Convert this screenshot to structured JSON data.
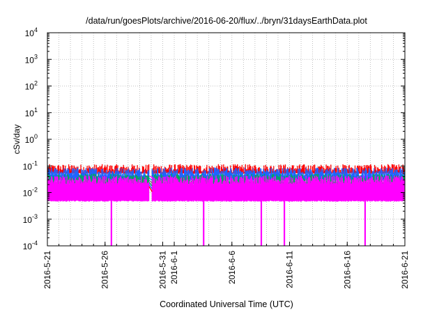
{
  "chart_data": {
    "type": "line",
    "title": "/data/run/goesPlots/archive/2016-06-20/flux/../bryn/31daysEarthData.plot",
    "xlabel": "Coordinated Universal Time (UTC)",
    "ylabel": "cSv/day",
    "yscale": "log",
    "ylim": [
      0.0001,
      10000
    ],
    "xlim": [
      "2016-05-21",
      "2016-06-21"
    ],
    "grid": true,
    "legend": "none",
    "x_ticks": [
      "2016-5-21",
      "2016-5-26",
      "2016-5-31",
      "2016-6-1",
      "2016-6-6",
      "2016-6-11",
      "2016-6-16",
      "2016-6-21"
    ],
    "x_tick_days": [
      0,
      5,
      10,
      11,
      16,
      21,
      26,
      31
    ],
    "y_ticks": [
      {
        "base": "10",
        "exp": "-4",
        "value": 0.0001
      },
      {
        "base": "10",
        "exp": "-3",
        "value": 0.001
      },
      {
        "base": "10",
        "exp": "-2",
        "value": 0.01
      },
      {
        "base": "10",
        "exp": "-1",
        "value": 0.1
      },
      {
        "base": "10",
        "exp": "0",
        "value": 1
      },
      {
        "base": "10",
        "exp": "1",
        "value": 10
      },
      {
        "base": "10",
        "exp": "2",
        "value": 100
      },
      {
        "base": "10",
        "exp": "3",
        "value": 1000
      },
      {
        "base": "10",
        "exp": "4",
        "value": 10000
      }
    ],
    "data_gap": {
      "start": "2016-05-29",
      "end": "2016-05-30"
    },
    "dropouts": [
      "2016-05-26",
      "2016-06-03",
      "2016-06-08",
      "2016-06-10",
      "2016-06-17"
    ],
    "series": [
      {
        "color": "#ff0000",
        "typical_peak": 0.08,
        "typical_base": 0.055
      },
      {
        "color": "#1e64ff",
        "typical_peak": 0.06,
        "typical_base": 0.03
      },
      {
        "color": "#00aa55",
        "typical_peak": 0.035,
        "typical_base": 0.022
      },
      {
        "color": "#ff00ff",
        "typical_peak": 0.03,
        "typical_base": 0.005
      }
    ],
    "colors": {
      "gap_lines": [
        "#ff0000",
        "#1e64ff",
        "#00aa55",
        "#777777",
        "#00b0d0",
        "#ff00ff"
      ]
    }
  }
}
